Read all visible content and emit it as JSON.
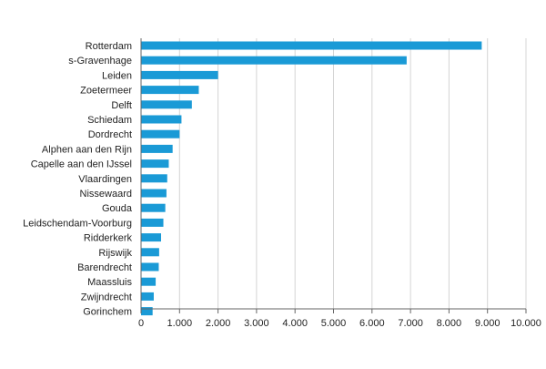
{
  "chart_data": {
    "type": "bar",
    "orientation": "horizontal",
    "categories": [
      "Rotterdam",
      "s-Gravenhage",
      "Leiden",
      "Zoetermeer",
      "Delft",
      "Schiedam",
      "Dordrecht",
      "Alphen aan den Rijn",
      "Capelle aan den IJssel",
      "Vlaardingen",
      "Nissewaard",
      "Gouda",
      "Leidschendam-Voorburg",
      "Ridderkerk",
      "Rijswijk",
      "Barendrecht",
      "Maassluis",
      "Zwijndrecht",
      "Gorinchem"
    ],
    "values": [
      8850,
      6900,
      2000,
      1500,
      1320,
      1050,
      1000,
      820,
      720,
      680,
      660,
      630,
      580,
      520,
      470,
      460,
      380,
      330,
      300
    ],
    "xlim": [
      0,
      10000
    ],
    "xticks": [
      0,
      1000,
      2000,
      3000,
      4000,
      5000,
      6000,
      7000,
      8000,
      9000,
      10000
    ],
    "xtick_labels": [
      "0",
      "1.000",
      "2.000",
      "3.000",
      "4.000",
      "5.000",
      "6.000",
      "7.000",
      "8.000",
      "9.000",
      "10.000"
    ],
    "grid": "vertical",
    "legend": "none",
    "bar_color": "#1a9ad6",
    "grid_color": "#d4d4d4",
    "title": "",
    "xlabel": "",
    "ylabel": ""
  }
}
